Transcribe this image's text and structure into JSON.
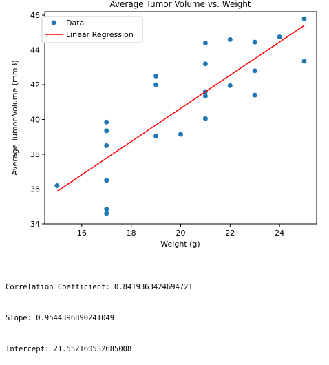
{
  "chart_data": {
    "type": "scatter",
    "title": "Average Tumor Volume vs. Weight",
    "xlabel": "Weight (g)",
    "ylabel": "Average Tumor Volume (mm3)",
    "xlim": [
      14.5,
      25.5
    ],
    "ylim": [
      34,
      46.2
    ],
    "xticks": [
      16,
      18,
      20,
      22,
      24
    ],
    "yticks": [
      34,
      36,
      38,
      40,
      42,
      44,
      46
    ],
    "grid": false,
    "legend_position": "upper-left",
    "series": [
      {
        "name": "Data",
        "kind": "scatter",
        "color": "#1f77b4",
        "points": [
          [
            15,
            36.2
          ],
          [
            17,
            34.6
          ],
          [
            17,
            34.85
          ],
          [
            17,
            36.5
          ],
          [
            17,
            38.5
          ],
          [
            17,
            39.35
          ],
          [
            17,
            39.85
          ],
          [
            19,
            39.05
          ],
          [
            19,
            42.0
          ],
          [
            19,
            42.5
          ],
          [
            20,
            39.15
          ],
          [
            21,
            40.05
          ],
          [
            21,
            41.35
          ],
          [
            21,
            41.6
          ],
          [
            21,
            43.2
          ],
          [
            21,
            44.4
          ],
          [
            22,
            41.95
          ],
          [
            22,
            44.6
          ],
          [
            23,
            41.4
          ],
          [
            23,
            42.8
          ],
          [
            23,
            44.45
          ],
          [
            24,
            44.75
          ],
          [
            25,
            43.35
          ],
          [
            25,
            45.8
          ]
        ]
      },
      {
        "name": "Linear Regression",
        "kind": "line",
        "color": "#ff0000",
        "x": [
          15,
          25
        ],
        "y": [
          35.87,
          45.41
        ]
      }
    ]
  },
  "output": {
    "correlation": "Correlation Coefficient: 0.8419363424694721",
    "slope": "Slope: 0.9544396890241049",
    "intercept": "Intercept: 21.552160532685008"
  }
}
